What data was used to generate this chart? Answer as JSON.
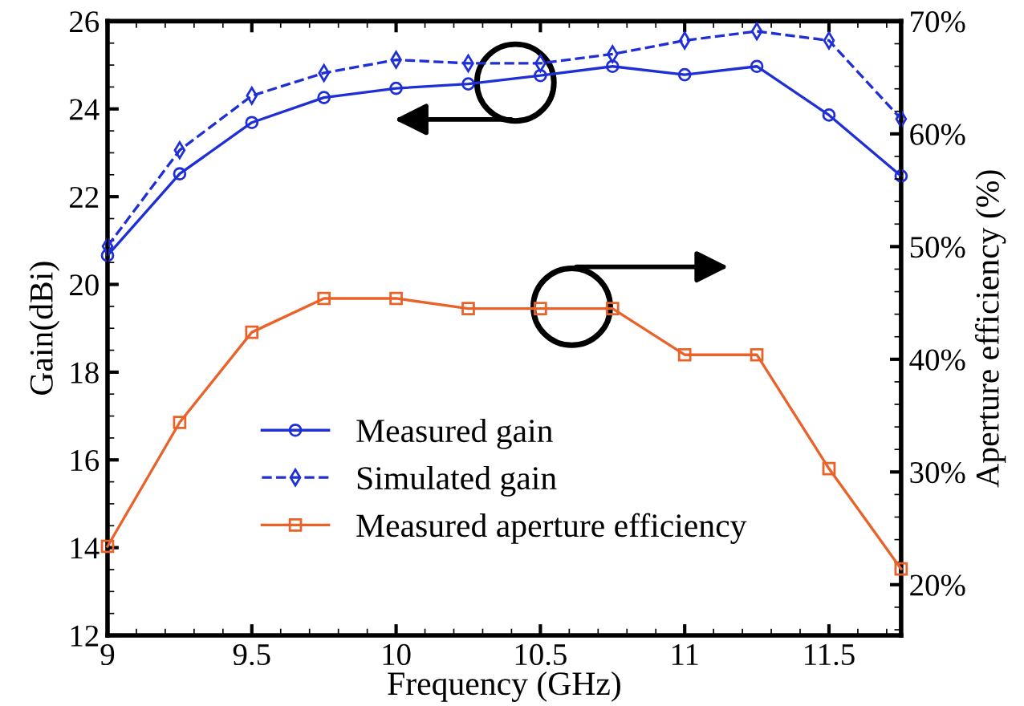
{
  "chart_data": {
    "type": "line",
    "xlabel": "Frequency (GHz)",
    "ylabel": "Gain(dBi)",
    "y2label": "Aperture efficiency (%)",
    "x": [
      9,
      9.25,
      9.5,
      9.75,
      10,
      10.25,
      10.5,
      10.75,
      11,
      11.25,
      11.5,
      11.75
    ],
    "series": [
      {
        "name": "Measured gain",
        "color": "#1f2fd6",
        "marker": "circle",
        "line_style": "solid",
        "values": [
          20.66,
          22.52,
          23.69,
          24.26,
          24.47,
          24.57,
          24.76,
          24.97,
          24.78,
          24.97,
          23.86,
          22.47
        ]
      },
      {
        "name": "Simulated gain",
        "color": "#1f2fd6",
        "marker": "diamond",
        "line_style": "dashed",
        "values": [
          20.87,
          23.06,
          24.3,
          24.82,
          25.12,
          25.04,
          25.04,
          25.25,
          25.56,
          25.77,
          25.56,
          23.77
        ]
      },
      {
        "name": "Measured aperture efficiency",
        "color": "#e8622a",
        "marker": "square",
        "line_style": "solid",
        "axis": "y2",
        "values": [
          23.4,
          34.4,
          42.4,
          45.4,
          45.4,
          44.5,
          44.5,
          44.5,
          40.4,
          40.4,
          30.3,
          21.4
        ]
      }
    ],
    "xlim": [
      9,
      11.75
    ],
    "xticks": [
      9,
      9.5,
      10,
      10.5,
      11,
      11.5
    ],
    "ylim": [
      12,
      26
    ],
    "yticks": [
      12,
      14,
      16,
      18,
      20,
      22,
      24,
      26
    ],
    "y2lim": [
      15.5,
      70
    ],
    "y2ticks": [
      {
        "value": 20,
        "label": "20%"
      },
      {
        "value": 30,
        "label": "30%"
      },
      {
        "value": 40,
        "label": "40%"
      },
      {
        "value": 50,
        "label": "50%"
      },
      {
        "value": 60,
        "label": "60%"
      },
      {
        "value": 70,
        "label": "70%"
      }
    ],
    "grid": false,
    "legend": "bottom"
  }
}
